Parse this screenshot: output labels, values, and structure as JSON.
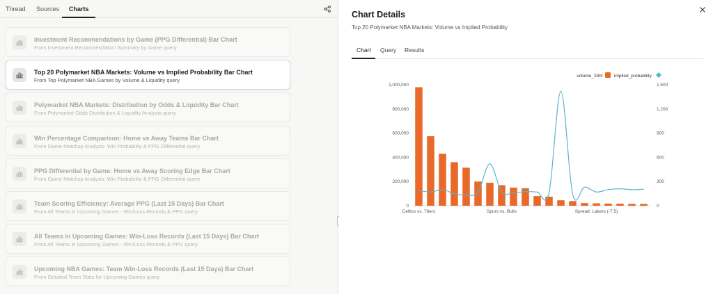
{
  "left_tabs": [
    {
      "label": "Thread"
    },
    {
      "label": "Sources"
    },
    {
      "label": "Charts"
    }
  ],
  "cards": [
    {
      "title": "Investment Recommendations by Game (PPG Differential) Bar Chart",
      "subtitle": "From Investment Recommendation Summary by Game query"
    },
    {
      "title": "Top 20 Polymarket NBA Markets: Volume vs Implied Probability Bar Chart",
      "subtitle": "From Top Polymarket NBA Games by Volume & Liquidity query"
    },
    {
      "title": "Polymarket NBA Markets: Distribution by Odds & Liquidity Bar Chart",
      "subtitle": "From Polymarket Odds Distribution & Liquidity Analysis query"
    },
    {
      "title": "Win Percentage Comparison: Home vs Away Teams Bar Chart",
      "subtitle": "From Game Matchup Analysis: Win Probability & PPG Differential query"
    },
    {
      "title": "PPG Differential by Game: Home vs Away Scoring Edge Bar Chart",
      "subtitle": "From Game Matchup Analysis: Win Probability & PPG Differential query"
    },
    {
      "title": "Team Scoring Efficiency: Average PPG (Last 15 Days) Bar Chart",
      "subtitle": "From All Teams in Upcoming Games - Win/Loss Records & PPG query"
    },
    {
      "title": "All Teams in Upcoming Games: Win-Loss Records (Last 15 Days) Bar Chart",
      "subtitle": "From All Teams in Upcoming Games - Win/Loss Records & PPG query"
    },
    {
      "title": "Upcoming NBA Games: Team Win-Loss Records (Last 15 Days) Bar Chart",
      "subtitle": "From Detailed Team Stats for Upcoming Games query"
    }
  ],
  "details": {
    "title": "Chart Details",
    "subtitle": "Top 20 Polymarket NBA Markets: Volume vs Implied Probability",
    "tabs": [
      {
        "label": "Chart"
      },
      {
        "label": "Query"
      },
      {
        "label": "Results"
      }
    ]
  },
  "icons": {
    "share": "share-icon",
    "close": "close-icon",
    "chart_card": "bar-chart-icon"
  },
  "colors": {
    "bar": "#e8692a",
    "line": "#5bb3d1",
    "accent": "#222222"
  },
  "chart_data": {
    "type": "bar",
    "categories": [
      "Celtics vs. 76ers",
      "",
      "",
      "",
      "",
      "",
      "",
      "Spurs vs. Bulls",
      "",
      "",
      "",
      "",
      "",
      "",
      "",
      "Spread: Lakers (-7.5)",
      "",
      "",
      "",
      ""
    ],
    "series": [
      {
        "name": "volume_24hr",
        "axis": "left",
        "type": "bar",
        "values": [
          980000,
          575000,
          430000,
          360000,
          315000,
          200000,
          190000,
          170000,
          150000,
          145000,
          80000,
          75000,
          45000,
          38000,
          22000,
          20000,
          18000,
          17000,
          16000,
          15000
        ]
      },
      {
        "name": "implied_probability",
        "axis": "right",
        "type": "line",
        "values": [
          190,
          170,
          200,
          150,
          130,
          170,
          520,
          170,
          160,
          175,
          170,
          160,
          1420,
          140,
          230,
          170,
          200,
          210,
          200,
          205
        ]
      }
    ],
    "y_left": {
      "ticks": [
        "0",
        "200,000",
        "400,000",
        "600,000",
        "800,000",
        "1,000,000"
      ],
      "range": [
        0,
        1000000
      ]
    },
    "y_right": {
      "ticks": [
        "0",
        "300",
        "600",
        "900",
        "1,200",
        "1,500"
      ],
      "range": [
        0,
        1500
      ]
    },
    "legend_position": "top-right",
    "grid": true
  }
}
